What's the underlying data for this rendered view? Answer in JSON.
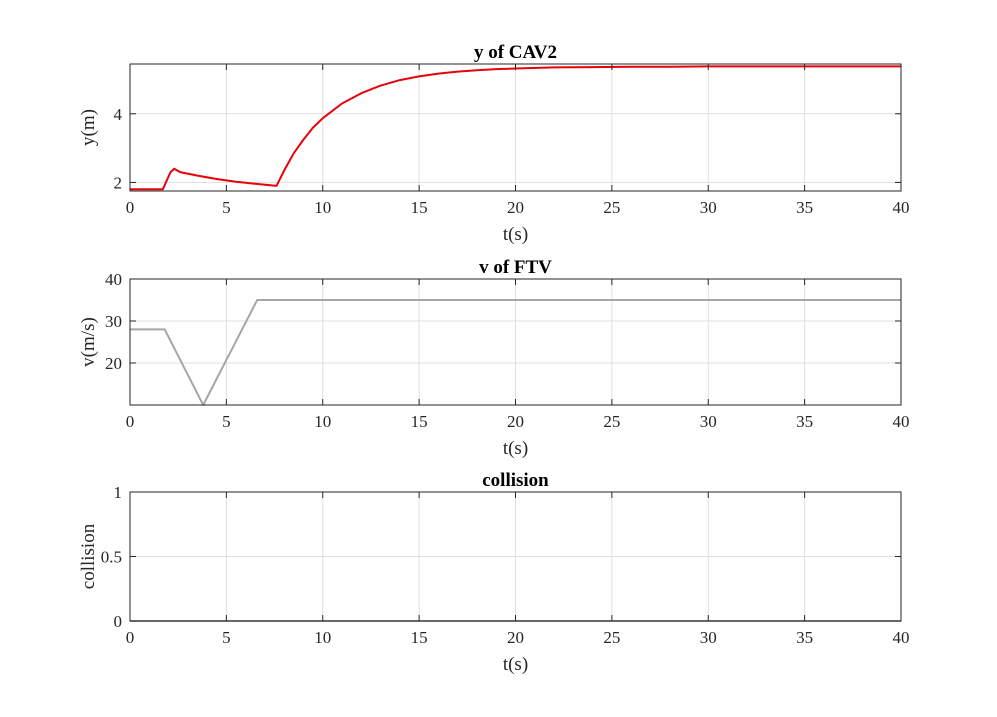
{
  "chart_data": [
    {
      "type": "line",
      "title": "y of CAV2",
      "xlabel": "t(s)",
      "ylabel": "y(m)",
      "xlim": [
        0,
        40
      ],
      "ylim": [
        1.75,
        5.45
      ],
      "xticks": [
        0,
        5,
        10,
        15,
        20,
        25,
        30,
        35,
        40
      ],
      "yticks": [
        2,
        4
      ],
      "grid": true,
      "series": [
        {
          "color": "#e8000b",
          "x": [
            0,
            1.7,
            2.1,
            2.3,
            2.6,
            3.5,
            4.5,
            5.5,
            6.5,
            7.6,
            8.0,
            8.5,
            9.0,
            9.5,
            10,
            11,
            12,
            13,
            14,
            15,
            16,
            17,
            18,
            19,
            20,
            22,
            24,
            26,
            28,
            30,
            32,
            34,
            36,
            38,
            40
          ],
          "y": [
            1.8,
            1.8,
            2.3,
            2.4,
            2.3,
            2.2,
            2.1,
            2.02,
            1.96,
            1.9,
            2.35,
            2.85,
            3.25,
            3.6,
            3.87,
            4.3,
            4.6,
            4.82,
            4.98,
            5.09,
            5.17,
            5.23,
            5.27,
            5.3,
            5.32,
            5.35,
            5.36,
            5.37,
            5.37,
            5.38,
            5.38,
            5.38,
            5.38,
            5.38,
            5.38
          ]
        }
      ]
    },
    {
      "type": "line",
      "title": "v of FTV",
      "xlabel": "t(s)",
      "ylabel": "v(m/s)",
      "xlim": [
        0,
        40
      ],
      "ylim": [
        10,
        40
      ],
      "xticks": [
        0,
        5,
        10,
        15,
        20,
        25,
        30,
        35,
        40
      ],
      "yticks": [
        20,
        30,
        40
      ],
      "grid": true,
      "series": [
        {
          "color": "#a6a6a6",
          "x": [
            0,
            1.8,
            3.8,
            6.6,
            40
          ],
          "y": [
            28,
            28,
            10,
            35,
            35
          ]
        }
      ]
    },
    {
      "type": "line",
      "title": "collision",
      "xlabel": "t(s)",
      "ylabel": "collision",
      "xlim": [
        0,
        40
      ],
      "ylim": [
        0,
        1
      ],
      "xticks": [
        0,
        5,
        10,
        15,
        20,
        25,
        30,
        35,
        40
      ],
      "yticks": [
        0,
        0.5,
        1
      ],
      "grid": true,
      "series": [
        {
          "color": "#a6a6a6",
          "x": [
            0,
            40
          ],
          "y": [
            0,
            0
          ]
        }
      ]
    }
  ]
}
